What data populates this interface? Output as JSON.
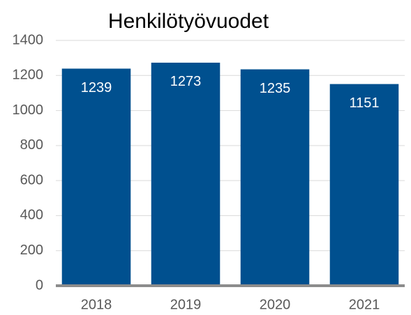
{
  "chart_data": {
    "type": "bar",
    "title": "Henkilötyövuodet",
    "categories": [
      "2018",
      "2019",
      "2020",
      "2021"
    ],
    "values": [
      1239,
      1273,
      1235,
      1151
    ],
    "color": "#00508f",
    "ylim": [
      0,
      1400
    ],
    "yticks": [
      0,
      200,
      400,
      600,
      800,
      1000,
      1200,
      1400
    ],
    "grid": true
  }
}
